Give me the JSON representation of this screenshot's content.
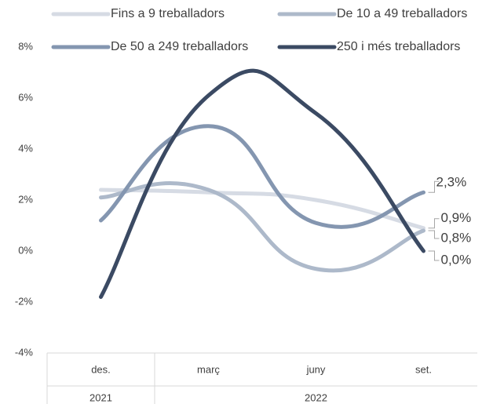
{
  "chart_data": {
    "type": "line",
    "categories": [
      "des.",
      "març",
      "juny",
      "set."
    ],
    "category_groups": [
      "2021",
      "2022",
      "2022",
      "2022"
    ],
    "ylim": [
      -4,
      8
    ],
    "yticks": [
      {
        "value": -4,
        "label": "-4%"
      },
      {
        "value": -2,
        "label": "-2%"
      },
      {
        "value": 0,
        "label": "0%"
      },
      {
        "value": 2,
        "label": "2%"
      },
      {
        "value": 4,
        "label": "4%"
      },
      {
        "value": 6,
        "label": "6%"
      },
      {
        "value": 8,
        "label": "8%"
      }
    ],
    "grid": false,
    "smooth": true,
    "legend": "top",
    "series": [
      {
        "name": "Fins a 9 treballadors",
        "color": "#d6dbe4",
        "values": [
          2.4,
          2.3,
          2.0,
          0.9
        ],
        "value_labels": [
          null,
          null,
          null,
          "0,9%"
        ]
      },
      {
        "name": "De 10 a 49 treballadors",
        "color": "#adb9ca",
        "values": [
          2.1,
          2.4,
          -0.7,
          0.8
        ],
        "value_labels": [
          null,
          null,
          null,
          "0,8%"
        ]
      },
      {
        "name": "De 50 a 249 treballadors",
        "color": "#8496b0",
        "values": [
          1.2,
          4.9,
          1.1,
          2.3
        ],
        "value_labels": [
          null,
          null,
          null,
          "2,3%"
        ]
      },
      {
        "name": "250 i més treballadors",
        "color": "#3b4a63",
        "values": [
          -1.8,
          6.1,
          5.4,
          0.0
        ],
        "value_labels": [
          null,
          null,
          null,
          "0,0%"
        ]
      }
    ]
  }
}
